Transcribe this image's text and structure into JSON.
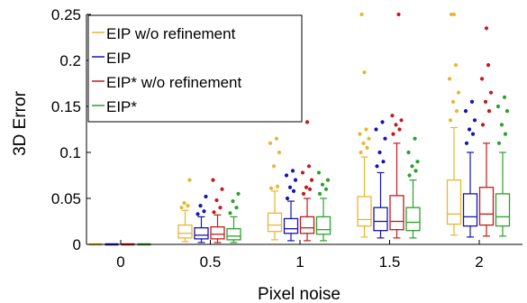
{
  "chart_data": {
    "type": "boxplot",
    "xlabel": "Pixel noise",
    "ylabel": "3D Error",
    "ylim": [
      0,
      0.25
    ],
    "yticks": [
      "0",
      "0.05",
      "0.1",
      "0.15",
      "0.2",
      "0.25"
    ],
    "categories": [
      "0",
      "0.5",
      "1",
      "1.5",
      "2"
    ],
    "legend_position": "top-left",
    "grid": false,
    "series": [
      {
        "name": "EIP w/o refinement",
        "color": "#e8b631",
        "boxes": [
          {
            "whislo": 0,
            "q1": 0,
            "med": 0,
            "q3": 0,
            "whishi": 0,
            "fliers": []
          },
          {
            "whislo": 0.003,
            "q1": 0.007,
            "med": 0.012,
            "q3": 0.021,
            "whishi": 0.037,
            "fliers": [
              0.04,
              0.042,
              0.045,
              0.07
            ]
          },
          {
            "whislo": 0.005,
            "q1": 0.014,
            "med": 0.021,
            "q3": 0.034,
            "whishi": 0.058,
            "fliers": [
              0.061,
              0.063,
              0.085,
              0.1,
              0.11,
              0.115
            ]
          },
          {
            "whislo": 0.008,
            "q1": 0.02,
            "med": 0.027,
            "q3": 0.052,
            "whishi": 0.095,
            "fliers": [
              0.1,
              0.105,
              0.11,
              0.115,
              0.12,
              0.125,
              0.187,
              0.25
            ]
          },
          {
            "whislo": 0.01,
            "q1": 0.022,
            "med": 0.033,
            "q3": 0.07,
            "whishi": 0.127,
            "fliers": [
              0.135,
              0.145,
              0.155,
              0.165,
              0.18,
              0.195,
              0.25,
              0.25
            ]
          }
        ]
      },
      {
        "name": "EIP",
        "color": "#1515b0",
        "boxes": [
          {
            "whislo": 0,
            "q1": 0,
            "med": 0,
            "q3": 0,
            "whishi": 0,
            "fliers": []
          },
          {
            "whislo": 0.002,
            "q1": 0.006,
            "med": 0.01,
            "q3": 0.018,
            "whishi": 0.03,
            "fliers": [
              0.033,
              0.036,
              0.042,
              0.052
            ]
          },
          {
            "whislo": 0.004,
            "q1": 0.012,
            "med": 0.017,
            "q3": 0.028,
            "whishi": 0.047,
            "fliers": [
              0.05,
              0.058,
              0.062,
              0.07,
              0.075,
              0.08
            ]
          },
          {
            "whislo": 0.007,
            "q1": 0.015,
            "med": 0.025,
            "q3": 0.04,
            "whishi": 0.078,
            "fliers": [
              0.085,
              0.09,
              0.1,
              0.115,
              0.125,
              0.133
            ]
          },
          {
            "whislo": 0.008,
            "q1": 0.02,
            "med": 0.03,
            "q3": 0.055,
            "whishi": 0.1,
            "fliers": [
              0.11,
              0.12,
              0.125,
              0.135,
              0.145,
              0.155
            ]
          }
        ]
      },
      {
        "name": "EIP* w/o refinement",
        "color": "#c41a1a",
        "boxes": [
          {
            "whislo": 0,
            "q1": 0,
            "med": 0,
            "q3": 0,
            "whishi": 0,
            "fliers": []
          },
          {
            "whislo": 0.002,
            "q1": 0.006,
            "med": 0.011,
            "q3": 0.019,
            "whishi": 0.032,
            "fliers": [
              0.035,
              0.04,
              0.048,
              0.06,
              0.07
            ]
          },
          {
            "whislo": 0.004,
            "q1": 0.012,
            "med": 0.018,
            "q3": 0.03,
            "whishi": 0.05,
            "fliers": [
              0.055,
              0.06,
              0.062,
              0.07,
              0.078,
              0.085,
              0.133
            ]
          },
          {
            "whislo": 0.007,
            "q1": 0.016,
            "med": 0.025,
            "q3": 0.053,
            "whishi": 0.11,
            "fliers": [
              0.12,
              0.125,
              0.13,
              0.135,
              0.14,
              0.25
            ]
          },
          {
            "whislo": 0.009,
            "q1": 0.021,
            "med": 0.033,
            "q3": 0.062,
            "whishi": 0.11,
            "fliers": [
              0.13,
              0.145,
              0.155,
              0.165,
              0.18,
              0.195,
              0.235
            ]
          }
        ]
      },
      {
        "name": "EIP*",
        "color": "#2ca02c",
        "boxes": [
          {
            "whislo": 0,
            "q1": 0,
            "med": 0,
            "q3": 0,
            "whishi": 0,
            "fliers": []
          },
          {
            "whislo": 0.002,
            "q1": 0.005,
            "med": 0.009,
            "q3": 0.017,
            "whishi": 0.03,
            "fliers": [
              0.034,
              0.04,
              0.047,
              0.055
            ]
          },
          {
            "whislo": 0.004,
            "q1": 0.011,
            "med": 0.016,
            "q3": 0.03,
            "whishi": 0.05,
            "fliers": [
              0.055,
              0.06,
              0.065,
              0.07,
              0.078
            ]
          },
          {
            "whislo": 0.007,
            "q1": 0.015,
            "med": 0.024,
            "q3": 0.04,
            "whishi": 0.07,
            "fliers": [
              0.075,
              0.08,
              0.085,
              0.09,
              0.1,
              0.115
            ]
          },
          {
            "whislo": 0.009,
            "q1": 0.02,
            "med": 0.03,
            "q3": 0.055,
            "whishi": 0.1,
            "fliers": [
              0.11,
              0.12,
              0.13,
              0.145,
              0.15,
              0.16
            ]
          }
        ]
      }
    ]
  }
}
